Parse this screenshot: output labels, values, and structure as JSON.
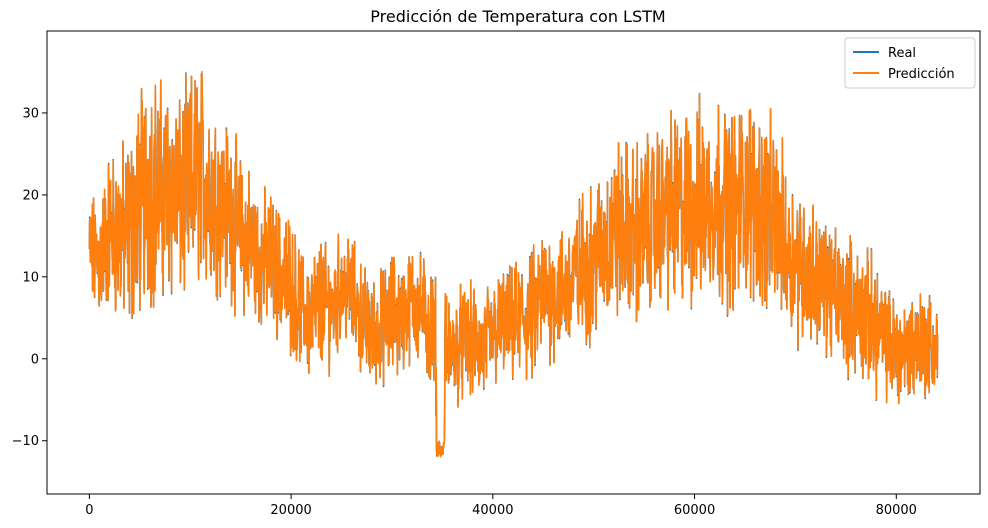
{
  "chart_data": {
    "type": "line",
    "title": "Predicción de Temperatura con LSTM",
    "xlabel": "",
    "ylabel": "",
    "xlim": [
      -4200,
      88300
    ],
    "ylim": [
      -16.5,
      40.0
    ],
    "xticks": [
      0,
      20000,
      40000,
      60000,
      80000
    ],
    "xtick_labels": [
      "0",
      "20000",
      "40000",
      "60000",
      "80000"
    ],
    "yticks": [
      -10,
      0,
      10,
      20,
      30
    ],
    "ytick_labels": [
      "−10",
      "0",
      "10",
      "20",
      "30"
    ],
    "grid": false,
    "legend_position": "top-right",
    "n_points": 84100,
    "x": [
      0,
      1000,
      2000,
      3000,
      4000,
      5000,
      6000,
      7000,
      8000,
      9000,
      10000,
      11000,
      12000,
      13000,
      14000,
      15000,
      16000,
      17000,
      18000,
      19000,
      20000,
      21000,
      22000,
      23000,
      24000,
      25000,
      26000,
      27000,
      28000,
      29000,
      30000,
      31000,
      32000,
      33000,
      34000,
      35000,
      36000,
      37000,
      38000,
      39000,
      40000,
      41000,
      42000,
      43000,
      44000,
      45000,
      46000,
      47000,
      48000,
      49000,
      50000,
      51000,
      52000,
      53000,
      54000,
      55000,
      56000,
      57000,
      58000,
      59000,
      60000,
      61000,
      62000,
      63000,
      64000,
      65000,
      66000,
      67000,
      68000,
      69000,
      70000,
      71000,
      72000,
      73000,
      74000,
      75000,
      76000,
      77000,
      78000,
      79000,
      80000,
      81000,
      82000,
      83000,
      84000
    ],
    "series_center": [
      13,
      12,
      16,
      15,
      15,
      19,
      22,
      20,
      21,
      19,
      21,
      23,
      21,
      19,
      18,
      15,
      14,
      12,
      12,
      10,
      9,
      6,
      5,
      7,
      6,
      9,
      8,
      5,
      3,
      4,
      5,
      5,
      7,
      6,
      3,
      0,
      1,
      2,
      2,
      1,
      3,
      4,
      4,
      5,
      5,
      8,
      8,
      8,
      10,
      11,
      12,
      14,
      15,
      16,
      15,
      16,
      17,
      18,
      18,
      18,
      19,
      19,
      20,
      19,
      18,
      20,
      19,
      18,
      17,
      14,
      12,
      11,
      10,
      9,
      8,
      7,
      6,
      5,
      4,
      2,
      1,
      1,
      2,
      2,
      1
    ],
    "series_amp": [
      5,
      6,
      7,
      8,
      9,
      10,
      11,
      10,
      10,
      9,
      10,
      10,
      9,
      8,
      8,
      7,
      7,
      6,
      6,
      6,
      6,
      5,
      6,
      6,
      5,
      5,
      5,
      5,
      5,
      5,
      6,
      5,
      5,
      5,
      6,
      6,
      5,
      5,
      5,
      5,
      5,
      5,
      5,
      6,
      6,
      6,
      6,
      6,
      6,
      7,
      7,
      7,
      8,
      8,
      8,
      8,
      8,
      8,
      9,
      9,
      9,
      9,
      9,
      9,
      9,
      9,
      9,
      9,
      8,
      8,
      7,
      7,
      6,
      6,
      6,
      6,
      6,
      6,
      6,
      5,
      5,
      5,
      5,
      5,
      5
    ],
    "series": [
      {
        "name": "Real",
        "color": "#1f77b4"
      },
      {
        "name": "Predicción",
        "color": "#ff7f0e"
      }
    ]
  }
}
